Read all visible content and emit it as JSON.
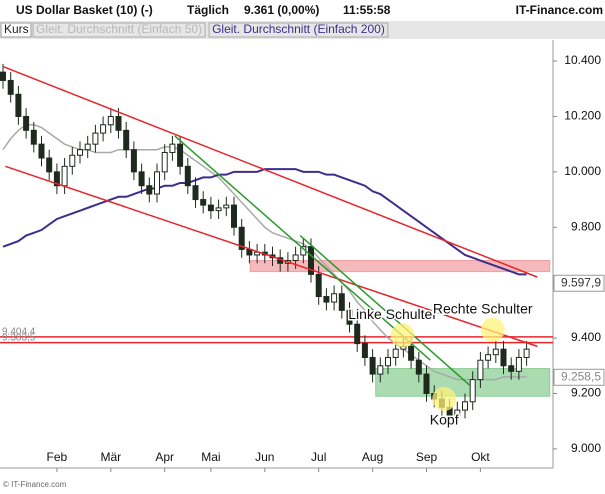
{
  "chart_data": {
    "type": "candlestick",
    "title": "US Dollar Basket (10) (-)",
    "interval": "Täglich",
    "quote": "9.361 (0,00%)",
    "time": "11:55:58",
    "brand": "IT-Finance.com",
    "copyright": "© IT-Finance.com",
    "price_name": "Kurs",
    "color": "#1e2a1e",
    "categories": [
      null,
      null,
      null,
      null,
      null,
      null,
      null,
      "Feb",
      null,
      null,
      null,
      null,
      null,
      null,
      "Mär",
      null,
      null,
      null,
      null,
      null,
      null,
      "Apr",
      null,
      null,
      null,
      null,
      null,
      "Mai",
      null,
      null,
      null,
      null,
      null,
      null,
      "Jun",
      null,
      null,
      null,
      null,
      null,
      null,
      "Jul",
      null,
      null,
      null,
      null,
      null,
      null,
      "Aug",
      null,
      null,
      null,
      null,
      null,
      null,
      "Sep",
      null,
      null,
      null,
      null,
      null,
      null,
      "Okt",
      null,
      null,
      null,
      null,
      null,
      null
    ],
    "open": [
      10.36,
      10.33,
      10.28,
      10.2,
      10.15,
      10.1,
      10.05,
      10.0,
      9.95,
      10.02,
      10.06,
      10.08,
      10.1,
      10.14,
      10.17,
      10.2,
      10.15,
      10.08,
      10.0,
      9.95,
      9.92,
      10.0,
      10.07,
      10.1,
      10.02,
      9.95,
      9.9,
      9.88,
      9.86,
      9.87,
      9.88,
      9.8,
      9.72,
      9.7,
      9.71,
      9.7,
      9.69,
      9.67,
      9.68,
      9.7,
      9.73,
      9.63,
      9.55,
      9.53,
      9.56,
      9.5,
      9.45,
      9.38,
      9.33,
      9.27,
      9.3,
      9.33,
      9.36,
      9.37,
      9.32,
      9.27,
      9.2,
      9.18,
      9.15,
      9.12,
      9.14,
      9.17,
      9.25,
      9.32,
      9.34,
      9.36,
      9.3,
      9.28,
      9.33
    ],
    "high": [
      10.39,
      10.36,
      10.31,
      10.23,
      10.18,
      10.13,
      10.08,
      10.03,
      10.05,
      10.09,
      10.11,
      10.13,
      10.17,
      10.2,
      10.23,
      10.23,
      10.18,
      10.11,
      10.03,
      9.98,
      10.03,
      10.1,
      10.13,
      10.13,
      10.05,
      9.98,
      9.93,
      9.91,
      9.9,
      9.91,
      9.91,
      9.83,
      9.75,
      9.74,
      9.74,
      9.73,
      9.72,
      9.71,
      9.73,
      9.76,
      9.76,
      9.66,
      9.58,
      9.59,
      9.59,
      9.53,
      9.48,
      9.41,
      9.36,
      9.33,
      9.36,
      9.39,
      9.4,
      9.4,
      9.35,
      9.3,
      9.23,
      9.21,
      9.18,
      9.17,
      9.2,
      9.28,
      9.35,
      9.37,
      9.39,
      9.39,
      9.33,
      9.36,
      9.39
    ],
    "low": [
      10.3,
      10.25,
      10.17,
      10.12,
      10.07,
      10.02,
      9.97,
      9.92,
      9.92,
      9.99,
      10.03,
      10.05,
      10.07,
      10.11,
      10.14,
      10.12,
      10.05,
      9.97,
      9.92,
      9.89,
      9.89,
      9.97,
      10.04,
      9.99,
      9.92,
      9.87,
      9.85,
      9.83,
      9.83,
      9.84,
      9.77,
      9.69,
      9.67,
      9.67,
      9.67,
      9.66,
      9.64,
      9.64,
      9.65,
      9.67,
      9.6,
      9.52,
      9.5,
      9.5,
      9.47,
      9.42,
      9.35,
      9.3,
      9.24,
      9.24,
      9.27,
      9.3,
      9.33,
      9.29,
      9.24,
      9.17,
      9.15,
      9.12,
      9.09,
      9.09,
      9.11,
      9.14,
      9.22,
      9.29,
      9.31,
      9.27,
      9.25,
      9.25,
      9.3
    ],
    "close": [
      10.33,
      10.28,
      10.2,
      10.15,
      10.1,
      10.05,
      10.0,
      9.95,
      10.02,
      10.06,
      10.08,
      10.1,
      10.14,
      10.17,
      10.2,
      10.15,
      10.08,
      10.0,
      9.95,
      9.92,
      10.0,
      10.07,
      10.1,
      10.02,
      9.95,
      9.9,
      9.88,
      9.86,
      9.87,
      9.88,
      9.8,
      9.72,
      9.7,
      9.71,
      9.7,
      9.69,
      9.67,
      9.68,
      9.7,
      9.73,
      9.63,
      9.55,
      9.53,
      9.56,
      9.5,
      9.45,
      9.38,
      9.33,
      9.27,
      9.3,
      9.33,
      9.36,
      9.37,
      9.32,
      9.27,
      9.2,
      9.18,
      9.15,
      9.12,
      9.14,
      9.17,
      9.25,
      9.32,
      9.34,
      9.36,
      9.3,
      9.28,
      9.33,
      9.36
    ],
    "series": [
      {
        "name": "Gleit. Durchschnitt (Einfach 50)",
        "color": "#a9a9a9",
        "values": [
          10.08,
          10.12,
          10.15,
          10.17,
          10.17,
          10.16,
          10.14,
          10.12,
          10.1,
          10.09,
          10.08,
          10.08,
          10.07,
          10.07,
          10.07,
          10.08,
          10.08,
          10.08,
          10.08,
          10.08,
          10.08,
          10.09,
          10.09,
          10.08,
          10.06,
          10.04,
          10.02,
          10.0,
          9.98,
          9.95,
          9.92,
          9.89,
          9.86,
          9.83,
          9.8,
          9.78,
          9.77,
          9.76,
          9.75,
          9.74,
          9.72,
          9.69,
          9.66,
          9.63,
          9.6,
          9.57,
          9.53,
          9.5,
          9.46,
          9.43,
          9.4,
          9.38,
          9.36,
          9.34,
          9.32,
          9.3,
          9.28,
          9.27,
          9.26,
          9.25,
          9.25,
          9.25,
          9.25,
          9.25,
          9.25,
          9.26,
          9.26,
          9.26,
          9.26
        ]
      },
      {
        "name": "Gleit. Durchschnitt (Einfach 200)",
        "color": "#3f2d8e",
        "values": [
          9.73,
          9.74,
          9.75,
          9.77,
          9.78,
          9.79,
          9.81,
          9.83,
          9.84,
          9.85,
          9.86,
          9.87,
          9.88,
          9.89,
          9.9,
          9.91,
          9.91,
          9.92,
          9.93,
          9.94,
          9.94,
          9.95,
          9.95,
          9.96,
          9.96,
          9.97,
          9.98,
          9.98,
          9.99,
          9.99,
          10.0,
          10.0,
          10.0,
          10.0,
          10.01,
          10.01,
          10.01,
          10.01,
          10.01,
          10.0,
          10.0,
          10.0,
          9.99,
          9.99,
          9.98,
          9.97,
          9.96,
          9.95,
          9.93,
          9.92,
          9.9,
          9.88,
          9.86,
          9.84,
          9.82,
          9.8,
          9.78,
          9.76,
          9.74,
          9.72,
          9.7,
          9.69,
          9.68,
          9.67,
          9.66,
          9.65,
          9.64,
          9.63,
          9.63
        ]
      }
    ],
    "ylim": [
      8.931,
      10.476
    ],
    "yticks": [
      {
        "value": 9.0,
        "label": "9.000"
      },
      {
        "value": 9.2,
        "label": "9.200"
      },
      {
        "value": 9.4,
        "label": "9.400"
      },
      {
        "value": 9.6,
        "label": "9.600"
      },
      {
        "value": 9.8,
        "label": "9.800"
      },
      {
        "value": 10.0,
        "label": "10.000"
      },
      {
        "value": 10.2,
        "label": "10.200"
      },
      {
        "value": 10.4,
        "label": "10.400"
      }
    ],
    "trendlines": [
      {
        "color": "#e8252b",
        "points": [
          [
            0,
            10.38
          ],
          [
            69.4,
            9.62
          ]
        ]
      },
      {
        "color": "#e8252b",
        "points": [
          [
            0.3,
            10.02
          ],
          [
            69.4,
            9.37
          ]
        ]
      },
      {
        "color": "#2a9a2a",
        "points": [
          [
            22.3,
            10.13
          ],
          [
            55.5,
            9.32
          ]
        ]
      },
      {
        "color": "#2a9a2a",
        "points": [
          [
            38.6,
            9.77
          ],
          [
            60.6,
            9.23
          ]
        ]
      }
    ],
    "hlines": [
      {
        "value": 9.4044,
        "label": "9.404,4",
        "color": "#e8252b"
      },
      {
        "value": 9.3835,
        "label": "9.383,5",
        "color": "#e8252b"
      }
    ],
    "zones": [
      {
        "color": "#f2a0a4",
        "from": 32.1,
        "to": 71,
        "ylim": [
          9.64,
          9.68
        ]
      },
      {
        "color": "#8fcf95",
        "from": 48.4,
        "to": 71,
        "ylim": [
          9.19,
          9.29
        ]
      }
    ],
    "axis_markers": [
      {
        "value": 9.5979,
        "label": "9.597,9"
      },
      {
        "value": 9.2585,
        "label": "9.258,5"
      }
    ],
    "annotations": [
      {
        "text": "Linke Schulter",
        "index": 51.9,
        "value": 9.41,
        "position": "above"
      },
      {
        "text": "Rechte Schulter",
        "index": 63.6,
        "value": 9.43,
        "position": "above"
      },
      {
        "text": "Kopf",
        "index": 57.3,
        "value": 9.18,
        "position": "below"
      }
    ]
  }
}
